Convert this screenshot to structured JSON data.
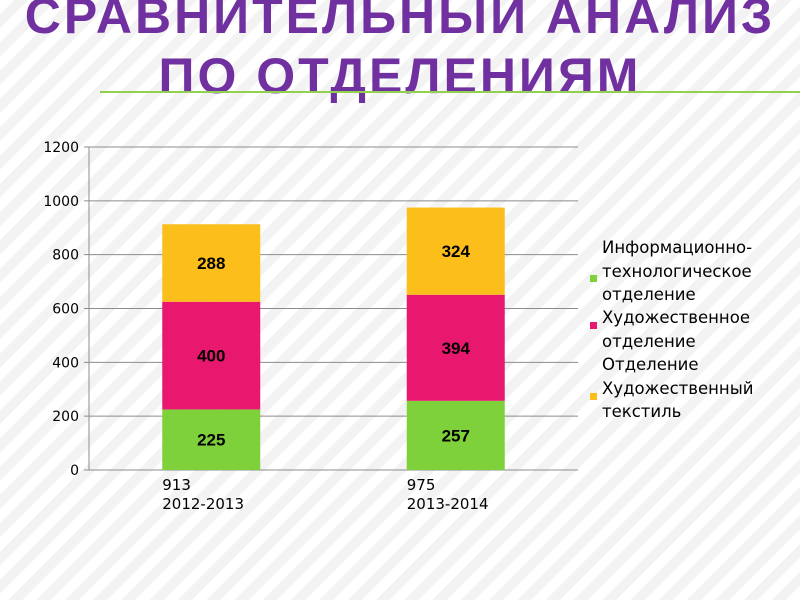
{
  "slide": {
    "title": "СРАВНИТЕЛЬНЫЙ АНАЛИЗ ПО ОТДЕЛЕНИЯМ"
  },
  "chart_data": {
    "type": "bar",
    "stacked": true,
    "categories": [
      "913\n2012-2013",
      "975\n2013-2014"
    ],
    "series": [
      {
        "name": "Информационно-технологическое отделение",
        "values": [
          225,
          257
        ],
        "color": "#7fd13b"
      },
      {
        "name": "Художественное отделение",
        "values": [
          400,
          394
        ],
        "color": "#e8186e"
      },
      {
        "name": "Отделение Художественный текстиль",
        "values": [
          288,
          324
        ],
        "color": "#fbbe1a"
      }
    ],
    "ylim": [
      0,
      1200
    ],
    "yticks": [
      0,
      200,
      400,
      600,
      800,
      1000,
      1200
    ],
    "grid": true,
    "legend_position": "right"
  },
  "legend": {
    "items": [
      {
        "text": "Информационно-\nтехнологическое\nотделение",
        "color": "#7fd13b"
      },
      {
        "text": "Художественное\nотделение",
        "color": "#e8186e"
      },
      {
        "text": "Отделение\nХудожественный\nтекстиль",
        "color": "#fbbe1a"
      }
    ]
  }
}
